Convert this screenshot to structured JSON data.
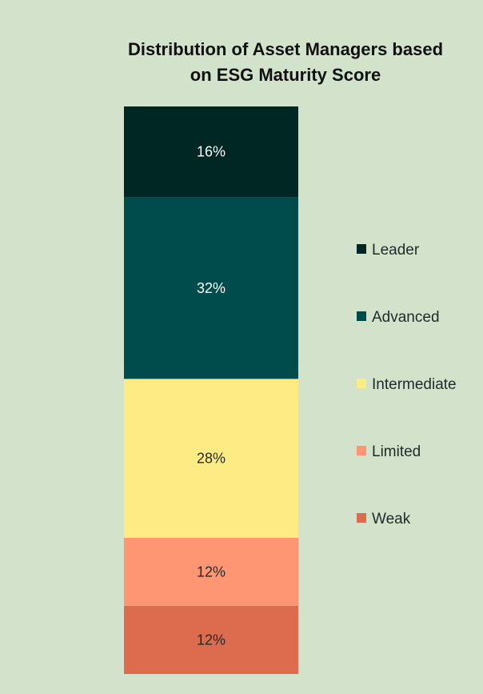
{
  "chart_data": {
    "type": "bar",
    "subtype": "100% stacked column",
    "title_lines": [
      "Distribution of Asset Managers based",
      "on ESG Maturity Score"
    ],
    "categories": [
      ""
    ],
    "series": [
      {
        "name": "Weak",
        "values": [
          12
        ],
        "label": "12%",
        "color": "#dd6b4d"
      },
      {
        "name": "Limited",
        "values": [
          12
        ],
        "label": "12%",
        "color": "#ff9673"
      },
      {
        "name": "Intermediate",
        "values": [
          28
        ],
        "label": "28%",
        "color": "#ffeb84"
      },
      {
        "name": "Advanced",
        "values": [
          32
        ],
        "label": "32%",
        "color": "#004c4c"
      },
      {
        "name": "Leader",
        "values": [
          16
        ],
        "label": "16%",
        "color": "#002724"
      }
    ],
    "legend": {
      "position": "right",
      "order": [
        "Leader",
        "Advanced",
        "Intermediate",
        "Limited",
        "Weak"
      ]
    },
    "ylim": [
      0,
      100
    ],
    "grid": false,
    "colors": {
      "background": "#d3e3cb",
      "dark_label": "#1f2a2a",
      "light_label": "#ffffff"
    }
  }
}
